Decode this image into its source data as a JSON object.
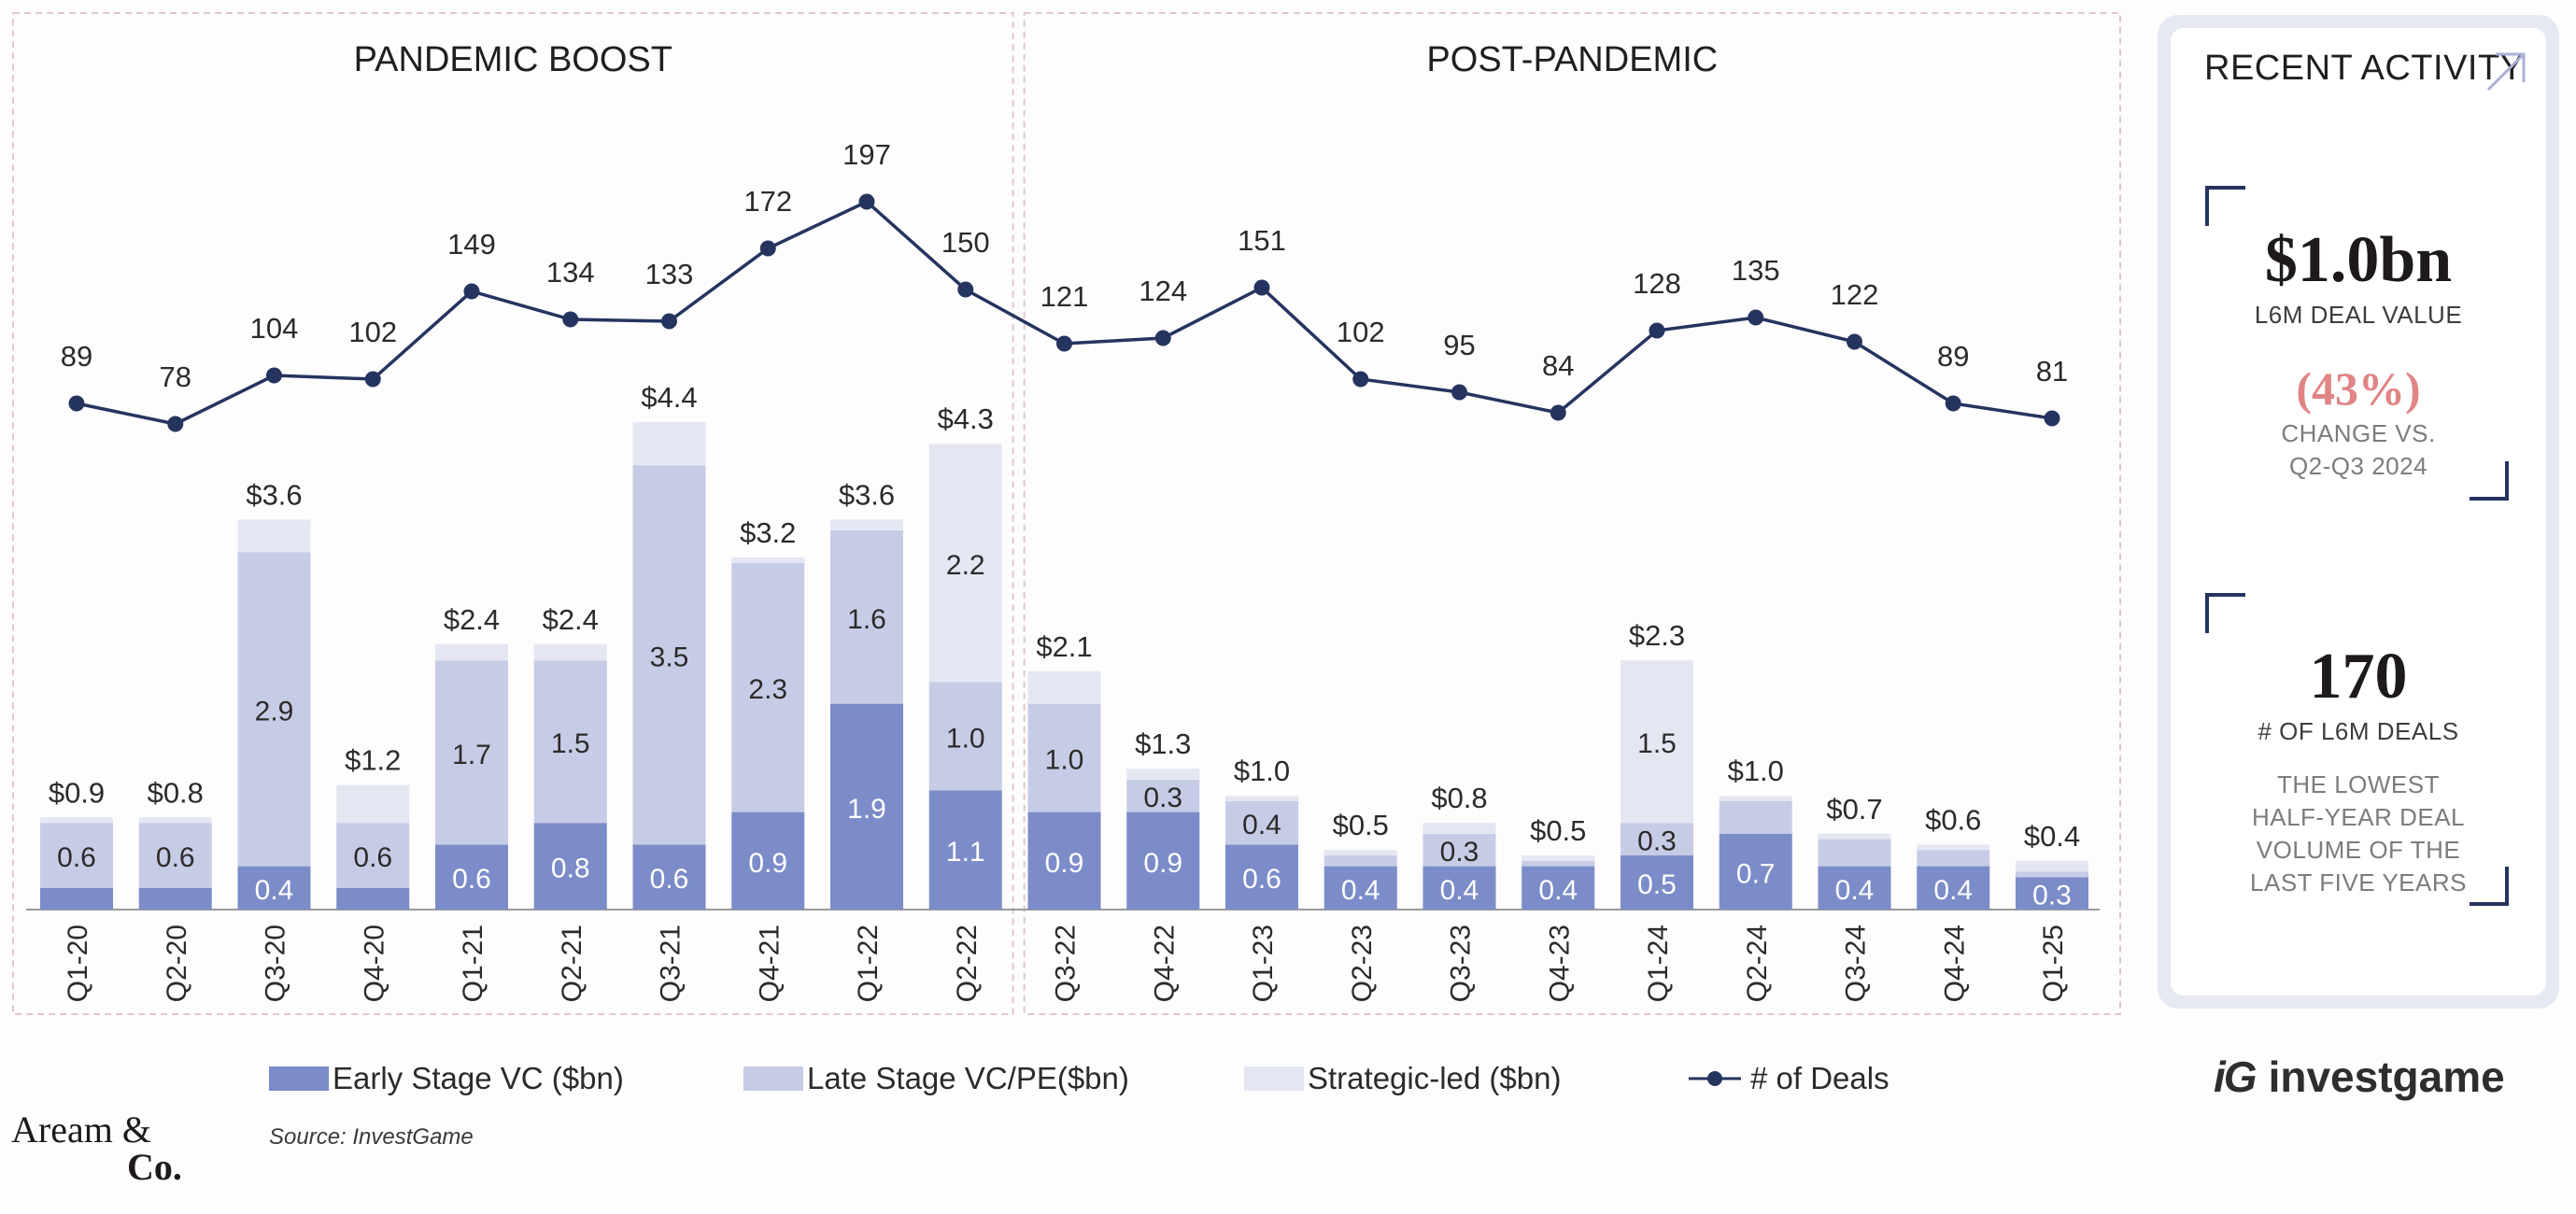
{
  "chart_data": {
    "type": "bar",
    "stacked": true,
    "sections": [
      "PANDEMIC BOOST",
      "POST-PANDEMIC"
    ],
    "section_split_after": "Q2-22",
    "categories": [
      "Q1-20",
      "Q2-20",
      "Q3-20",
      "Q4-20",
      "Q1-21",
      "Q2-21",
      "Q3-21",
      "Q4-21",
      "Q1-22",
      "Q2-22",
      "Q3-22",
      "Q4-22",
      "Q1-23",
      "Q2-23",
      "Q3-23",
      "Q4-23",
      "Q1-24",
      "Q2-24",
      "Q3-24",
      "Q4-24",
      "Q1-25"
    ],
    "series": [
      {
        "name": "Early Stage VC ($bn)",
        "color": "#7b8cc8",
        "values": [
          0.2,
          0.2,
          0.4,
          0.2,
          0.6,
          0.8,
          0.6,
          0.9,
          1.9,
          1.1,
          0.9,
          0.9,
          0.6,
          0.4,
          0.4,
          0.4,
          0.5,
          0.7,
          0.4,
          0.4,
          0.3
        ],
        "labels": [
          "",
          "",
          "0.4",
          "",
          "0.6",
          "0.8",
          "0.6",
          "0.9",
          "1.9",
          "1.1",
          "0.9",
          "0.9",
          "0.6",
          "0.4",
          "0.4",
          "0.4",
          "0.5",
          "0.7",
          "0.4",
          "0.4",
          "0.3"
        ]
      },
      {
        "name": "Late Stage VC/PE($bn)",
        "color": "#c7cce6",
        "values": [
          0.6,
          0.6,
          2.9,
          0.6,
          1.7,
          1.5,
          3.5,
          2.3,
          1.6,
          1.0,
          1.0,
          0.3,
          0.4,
          0.1,
          0.3,
          0.05,
          0.3,
          0.3,
          0.25,
          0.15,
          0.05
        ],
        "labels": [
          "0.6",
          "0.6",
          "2.9",
          "0.6",
          "1.7",
          "1.5",
          "3.5",
          "2.3",
          "1.6",
          "1.0",
          "1.0",
          "0.3",
          "0.4",
          "",
          "0.3",
          "",
          "0.3",
          "",
          "",
          "",
          ""
        ]
      },
      {
        "name": "Strategic-led ($bn)",
        "color": "#e4e6f2",
        "values": [
          0.05,
          0.05,
          0.3,
          0.35,
          0.15,
          0.15,
          0.4,
          0.05,
          0.1,
          2.2,
          0.3,
          0.1,
          0.05,
          0.05,
          0.1,
          0.05,
          1.5,
          0.05,
          0.05,
          0.05,
          0.1
        ],
        "labels": [
          "",
          "",
          "",
          "",
          "",
          "",
          "",
          "",
          "",
          "2.2",
          "",
          "",
          "",
          "",
          "",
          "",
          "1.5",
          "",
          "",
          "",
          ""
        ]
      }
    ],
    "totals": [
      "$0.9",
      "$0.8",
      "$3.6",
      "$1.2",
      "$2.4",
      "$2.4",
      "$4.4",
      "$3.2",
      "$3.6",
      "$4.3",
      "$2.1",
      "$1.3",
      "$1.0",
      "$0.5",
      "$0.8",
      "$0.5",
      "$2.3",
      "$1.0",
      "$0.7",
      "$0.6",
      "$0.4"
    ],
    "line": {
      "name": "# of Deals",
      "color": "#25345f",
      "values": [
        89,
        78,
        104,
        102,
        149,
        134,
        133,
        172,
        197,
        150,
        121,
        124,
        151,
        102,
        95,
        84,
        128,
        135,
        122,
        89,
        81
      ]
    },
    "ylim_bars": [
      0,
      4.6
    ],
    "ylim_line": [
      0,
      240
    ],
    "legend_position": "bottom",
    "source": "Source: InvestGame"
  },
  "panel": {
    "title": "RECENT ACTIVITY",
    "deal_value": "$1.0bn",
    "deal_value_label": "L6M DEAL VALUE",
    "change_value": "(43%)",
    "change_label_1": "CHANGE VS.",
    "change_label_2": "Q2-Q3 2024",
    "deals_count": "170",
    "deals_label": "# OF L6M DEALS",
    "note_1": "THE LOWEST",
    "note_2": "HALF-YEAR DEAL",
    "note_3": "VOLUME OF THE",
    "note_4": "LAST FIVE YEARS"
  },
  "legend": {
    "early": "Early Stage VC ($bn)",
    "late": "Late Stage VC/PE($bn)",
    "strategic": "Strategic-led ($bn)",
    "deals": "# of Deals"
  },
  "source": "Source: InvestGame",
  "logos": {
    "left_line1": "Aream &",
    "left_line2": "Co.",
    "right_mark": "iG",
    "right_text": "investgame"
  }
}
